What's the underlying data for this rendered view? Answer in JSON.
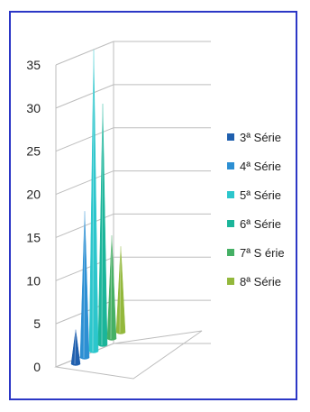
{
  "chart_data": {
    "type": "bar",
    "subtype": "3d-cone",
    "title": "",
    "xlabel": "",
    "ylabel": "",
    "ylim": [
      0,
      35
    ],
    "y_ticks": [
      "0",
      "5",
      "10",
      "15",
      "20",
      "25",
      "30",
      "35"
    ],
    "grid": true,
    "legend_position": "right",
    "series": [
      {
        "name": "3ª Série",
        "value": 4,
        "color": "#1f5fae"
      },
      {
        "name": "4ª Série",
        "value": 17,
        "color": "#2c8fd3"
      },
      {
        "name": "5ª Série",
        "value": 35,
        "color": "#2cc6cc"
      },
      {
        "name": "6ª Série",
        "value": 28,
        "color": "#1bb59a"
      },
      {
        "name": "7ª S érie",
        "value": 12,
        "color": "#45b065"
      },
      {
        "name": "8ª Série",
        "value": 10,
        "color": "#93b83c"
      }
    ]
  }
}
